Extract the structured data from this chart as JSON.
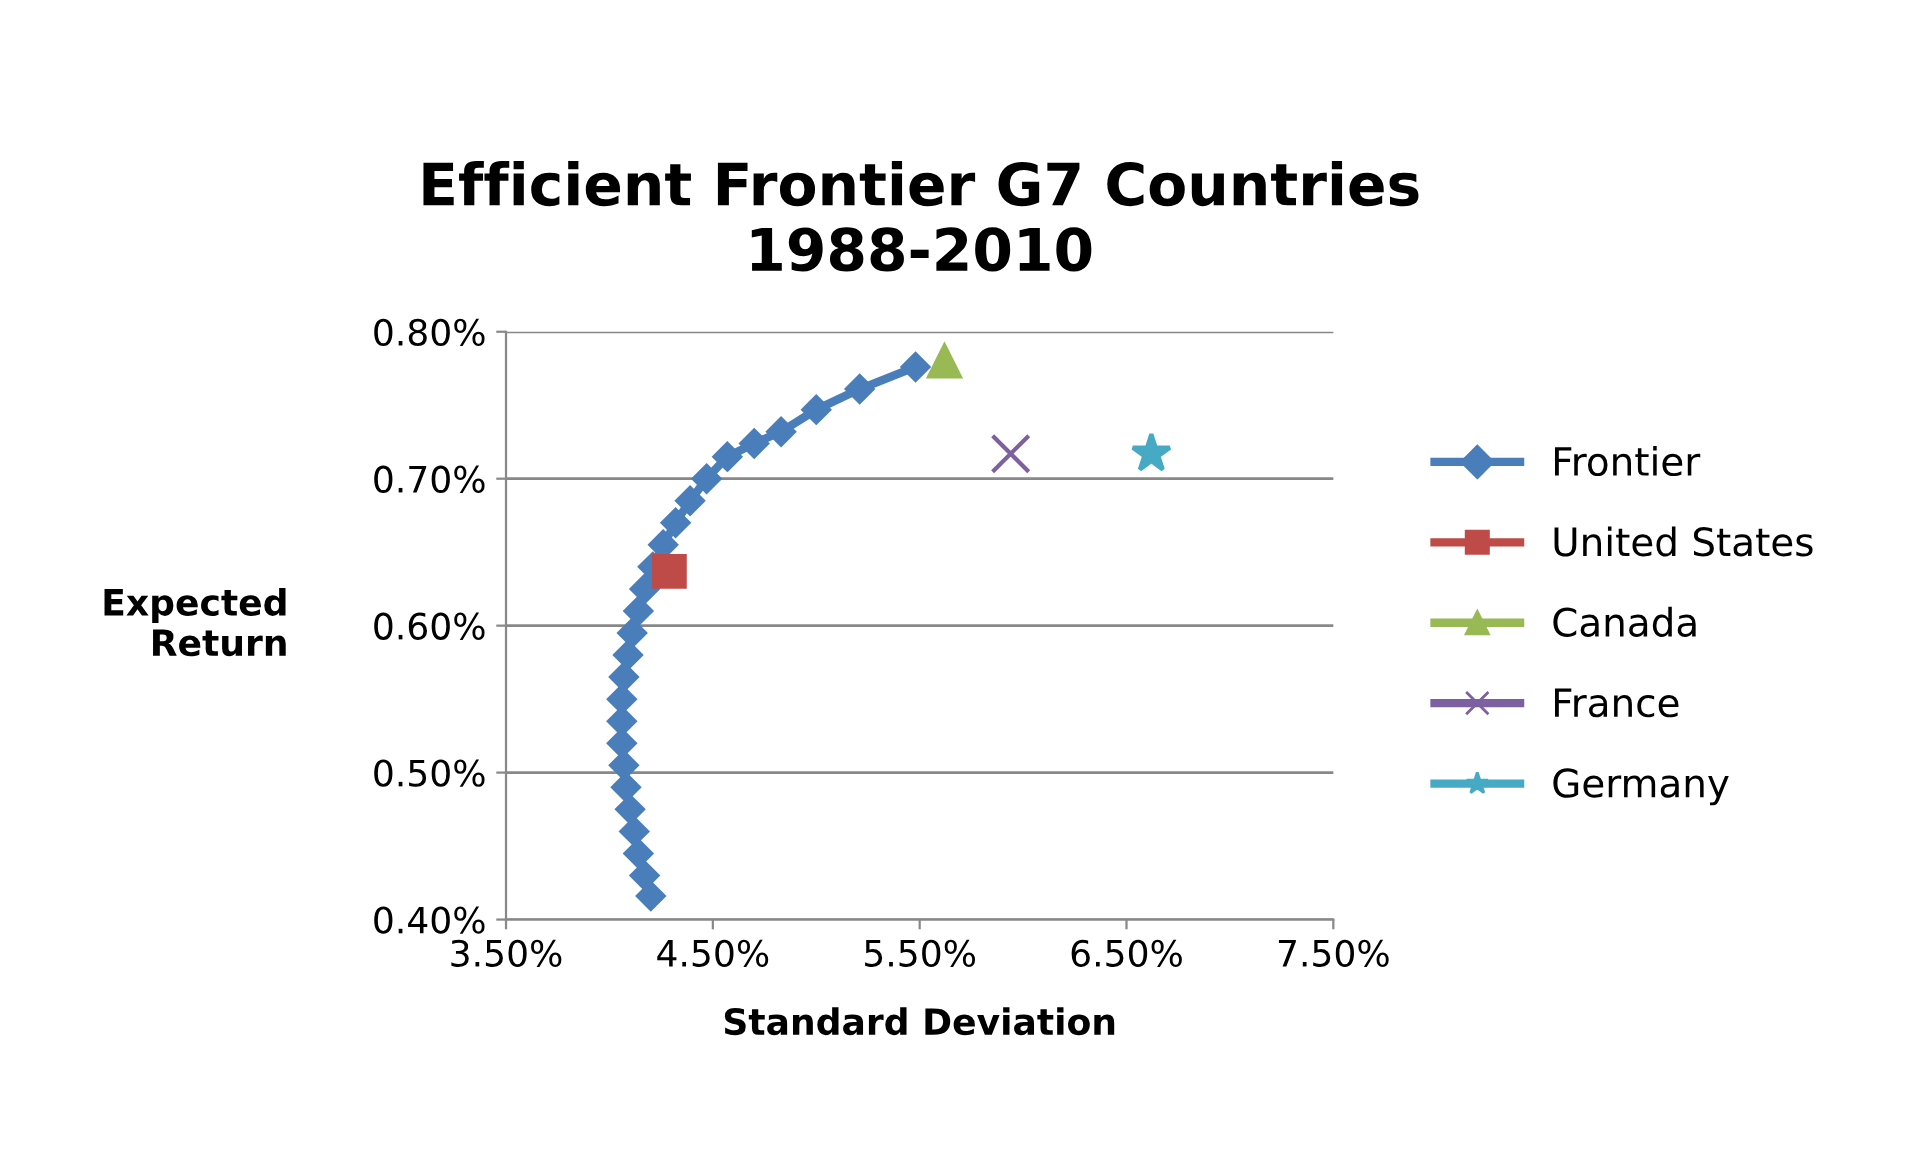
{
  "chart_data": {
    "type": "line",
    "title": "Efficient Frontier G7 Countries\n1988-2010",
    "xlabel": "Standard Deviation",
    "ylabel": "Expected Return",
    "xlim": [
      3.5,
      7.5
    ],
    "xticks": [
      {
        "value": 3.5,
        "label": "3.50%"
      },
      {
        "value": 4.5,
        "label": "4.50%"
      },
      {
        "value": 5.5,
        "label": "5.50%"
      },
      {
        "value": 6.5,
        "label": "6.50%"
      },
      {
        "value": 7.5,
        "label": "7.50%"
      }
    ],
    "ylim": [
      0.4,
      0.8
    ],
    "yticks": [
      {
        "value": 0.4,
        "label": "0.40%"
      },
      {
        "value": 0.5,
        "label": "0.50%"
      },
      {
        "value": 0.6,
        "label": "0.60%"
      },
      {
        "value": 0.7,
        "label": "0.70%"
      },
      {
        "value": 0.8,
        "label": "0.80%"
      }
    ],
    "grid": "y",
    "legend": "right",
    "series": [
      {
        "name": "Frontier",
        "marker": "diamond",
        "color": "#4a7ebb",
        "x": [
          4.2,
          4.17,
          4.14,
          4.12,
          4.1,
          4.08,
          4.07,
          4.06,
          4.06,
          4.06,
          4.07,
          4.09,
          4.11,
          4.14,
          4.17,
          4.21,
          4.26,
          4.32,
          4.39,
          4.47,
          4.57,
          4.7,
          4.83,
          5.0,
          5.21,
          5.48
        ],
        "values": [
          0.416,
          0.43,
          0.445,
          0.46,
          0.475,
          0.49,
          0.505,
          0.52,
          0.535,
          0.55,
          0.565,
          0.58,
          0.595,
          0.61,
          0.625,
          0.64,
          0.655,
          0.67,
          0.685,
          0.7,
          0.715,
          0.724,
          0.732,
          0.747,
          0.761,
          0.776
        ]
      },
      {
        "name": "United States",
        "type": "scatter",
        "marker": "square",
        "color": "#be4b48",
        "x": [
          4.29
        ],
        "values": [
          0.637
        ]
      },
      {
        "name": "Canada",
        "type": "scatter",
        "marker": "triangle",
        "color": "#98b954",
        "x": [
          5.62
        ],
        "values": [
          0.78
        ]
      },
      {
        "name": "France",
        "type": "scatter",
        "marker": "cross",
        "color": "#7d60a0",
        "x": [
          5.94
        ],
        "values": [
          0.717
        ]
      },
      {
        "name": "Germany",
        "type": "scatter",
        "marker": "star",
        "color": "#46aac5",
        "x": [
          6.62
        ],
        "values": [
          0.717
        ]
      }
    ]
  }
}
